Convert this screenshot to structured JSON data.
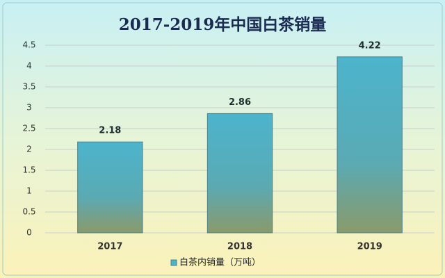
{
  "chart_data": {
    "type": "bar",
    "title": "2017-2019年中国白茶销量",
    "categories": [
      "2017",
      "2018",
      "2019"
    ],
    "series": [
      {
        "name": "白茶内销量（万吨）",
        "color": "#4cb4cc",
        "values": [
          2.18,
          2.86,
          4.22
        ]
      }
    ],
    "ylim": [
      0,
      4.5
    ],
    "yticks": [
      0,
      0.5,
      1,
      1.5,
      2,
      2.5,
      3,
      3.5,
      4,
      4.5
    ],
    "grid": true,
    "legend": "bottom"
  }
}
